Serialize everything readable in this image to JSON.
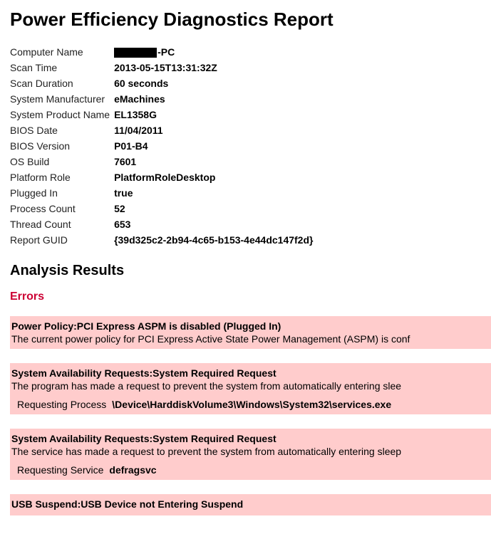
{
  "title": "Power Efficiency Diagnostics Report",
  "info_rows": [
    {
      "label": "Computer Name",
      "value": "-PC",
      "redacted": true
    },
    {
      "label": "Scan Time",
      "value": "2013-05-15T13:31:32Z"
    },
    {
      "label": "Scan Duration",
      "value": "60 seconds"
    },
    {
      "label": "System Manufacturer",
      "value": "eMachines"
    },
    {
      "label": "System Product Name",
      "value": "EL1358G"
    },
    {
      "label": "BIOS Date",
      "value": "11/04/2011"
    },
    {
      "label": "BIOS Version",
      "value": "P01-B4"
    },
    {
      "label": "OS Build",
      "value": "7601"
    },
    {
      "label": "Platform Role",
      "value": "PlatformRoleDesktop"
    },
    {
      "label": "Plugged In",
      "value": "true"
    },
    {
      "label": "Process Count",
      "value": "52"
    },
    {
      "label": "Thread Count",
      "value": "653"
    },
    {
      "label": "Report GUID",
      "value": "{39d325c2-2b94-4c65-b153-4e44dc147f2d}"
    }
  ],
  "analysis_heading": "Analysis Results",
  "errors_heading": "Errors",
  "colors": {
    "error_bg": "#ffcccc",
    "errors_heading_color": "#cc0033",
    "text": "#000000",
    "background": "#ffffff"
  },
  "errors": [
    {
      "title": "Power Policy:PCI Express ASPM is disabled (Plugged In)",
      "desc": "The current power policy for PCI Express Active State Power Management (ASPM) is conf"
    },
    {
      "title": "System Availability Requests:System Required Request",
      "desc": "The program has made a request to prevent the system from automatically entering slee",
      "detail_label": "Requesting Process",
      "detail_value": "\\Device\\HarddiskVolume3\\Windows\\System32\\services.exe"
    },
    {
      "title": "System Availability Requests:System Required Request",
      "desc": "The service has made a request to prevent the system from automatically entering sleep",
      "detail_label": "Requesting Service",
      "detail_value": "defragsvc"
    },
    {
      "title": "USB Suspend:USB Device not Entering Suspend",
      "desc": ""
    }
  ]
}
